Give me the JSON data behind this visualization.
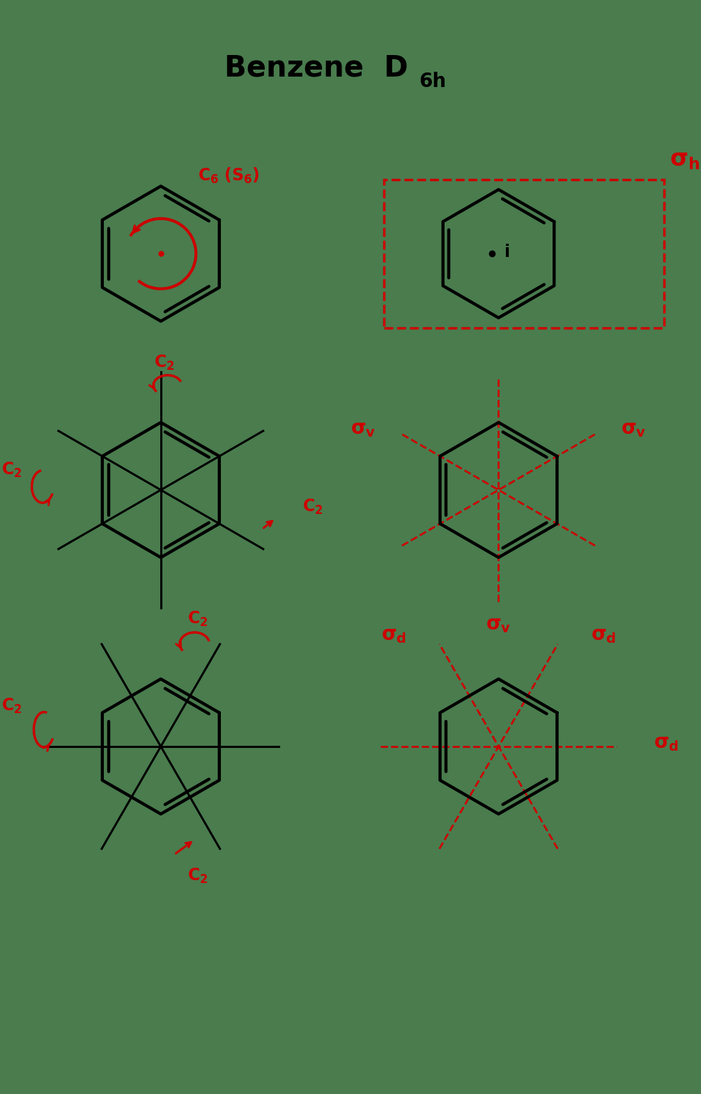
{
  "title": "Benzene  D",
  "title_sub": "6h",
  "bg_color": "#4a7c4e",
  "black": "#000000",
  "red": "#cc0000",
  "fig_width": 10.06,
  "fig_height": 15.71
}
